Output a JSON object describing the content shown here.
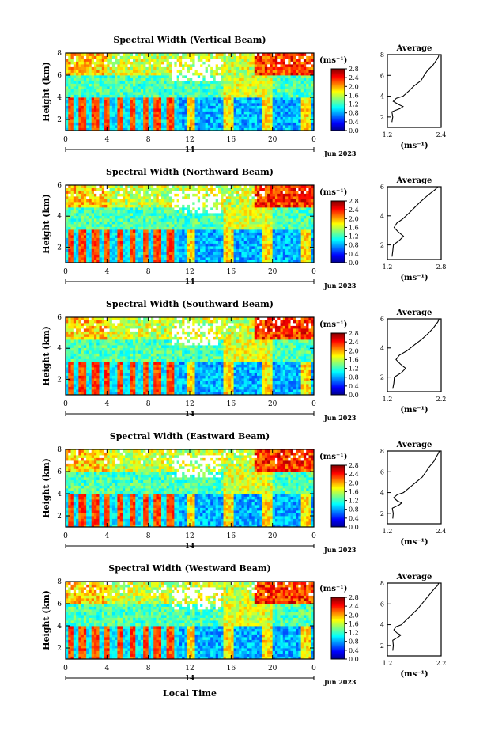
{
  "figure": {
    "xlabel": "Local Time",
    "date_day": "14",
    "date_label": "Jun 2023"
  },
  "chart_data": [
    {
      "type": "heatmap",
      "title": "Spectral Width (Vertical Beam)",
      "ylabel": "Height (km)",
      "xlim": [
        0,
        24
      ],
      "ylim": [
        1,
        8
      ],
      "xticks": [
        "0",
        "4",
        "8",
        "12",
        "16",
        "20",
        "0"
      ],
      "yticks": [
        "2",
        "4",
        "6",
        "8"
      ],
      "colorbar": {
        "unit": "(ms⁻¹)",
        "min": 0.0,
        "max": 2.8,
        "ticks": [
          "0.0",
          "0.4",
          "0.8",
          "1.2",
          "1.6",
          "2.0",
          "2.4",
          "2.8"
        ]
      },
      "profile": {
        "title": "Average",
        "xlabel": "(ms⁻¹)",
        "xlim": [
          1.2,
          2.4
        ],
        "xticks": [
          "1.2",
          "2.4"
        ],
        "yticks": [
          "2",
          "4",
          "6",
          "8"
        ],
        "height": [
          1.5,
          2.0,
          2.5,
          2.8,
          3.0,
          3.2,
          3.5,
          3.8,
          4.0,
          4.5,
          5.0,
          5.5,
          6.0,
          6.5,
          7.0,
          7.5,
          7.8,
          8.0
        ],
        "width": [
          1.3,
          1.32,
          1.3,
          1.48,
          1.55,
          1.45,
          1.33,
          1.4,
          1.55,
          1.68,
          1.8,
          1.95,
          2.02,
          2.1,
          2.22,
          2.3,
          2.34,
          2.35
        ]
      },
      "heat_seed": 3
    },
    {
      "type": "heatmap",
      "title": "Spectral Width (Northward Beam)",
      "ylabel": "Height (km)",
      "xlim": [
        0,
        24
      ],
      "ylim": [
        1,
        6
      ],
      "xticks": [
        "0",
        "4",
        "8",
        "12",
        "16",
        "20",
        "0"
      ],
      "yticks": [
        "2",
        "4",
        "6"
      ],
      "colorbar": {
        "unit": "(ms⁻¹)",
        "min": 0.0,
        "max": 2.8,
        "ticks": [
          "0.0",
          "0.4",
          "0.8",
          "1.2",
          "1.6",
          "2.0",
          "2.4",
          "2.8"
        ]
      },
      "profile": {
        "title": "Average",
        "xlabel": "(ms⁻¹)",
        "xlim": [
          1.2,
          2.8
        ],
        "xticks": [
          "1.2",
          "2.8"
        ],
        "yticks": [
          "2",
          "4",
          "6"
        ],
        "height": [
          1.2,
          1.6,
          2.0,
          2.3,
          2.6,
          2.9,
          3.2,
          3.5,
          3.8,
          4.2,
          4.6,
          5.0,
          5.4,
          5.8,
          6.0
        ],
        "width": [
          1.34,
          1.36,
          1.38,
          1.55,
          1.68,
          1.52,
          1.4,
          1.48,
          1.66,
          1.85,
          2.02,
          2.2,
          2.4,
          2.62,
          2.7
        ]
      },
      "heat_seed": 7
    },
    {
      "type": "heatmap",
      "title": "Spectral Width (Southward Beam)",
      "ylabel": "Height (km)",
      "xlim": [
        0,
        24
      ],
      "ylim": [
        1,
        6
      ],
      "xticks": [
        "0",
        "4",
        "8",
        "12",
        "16",
        "20",
        "0"
      ],
      "yticks": [
        "2",
        "4",
        "6"
      ],
      "colorbar": {
        "unit": "(ms⁻¹)",
        "min": 0.0,
        "max": 2.8,
        "ticks": [
          "0.0",
          "0.4",
          "0.8",
          "1.2",
          "1.6",
          "2.0",
          "2.4",
          "2.8"
        ]
      },
      "profile": {
        "title": "Average",
        "xlabel": "(ms⁻¹)",
        "xlim": [
          1.2,
          2.2
        ],
        "xticks": [
          "1.2",
          "2.2"
        ],
        "yticks": [
          "2",
          "4",
          "6"
        ],
        "height": [
          1.2,
          1.6,
          2.0,
          2.3,
          2.6,
          2.9,
          3.2,
          3.5,
          3.8,
          4.2,
          4.6,
          5.0,
          5.4,
          5.8,
          6.0
        ],
        "width": [
          1.3,
          1.32,
          1.33,
          1.46,
          1.54,
          1.44,
          1.36,
          1.42,
          1.56,
          1.7,
          1.84,
          1.96,
          2.06,
          2.14,
          2.16
        ]
      },
      "heat_seed": 11
    },
    {
      "type": "heatmap",
      "title": "Spectral Width (Eastward Beam)",
      "ylabel": "Height (km)",
      "xlim": [
        0,
        24
      ],
      "ylim": [
        1,
        8
      ],
      "xticks": [
        "0",
        "4",
        "8",
        "12",
        "16",
        "20",
        "0"
      ],
      "yticks": [
        "2",
        "4",
        "6",
        "8"
      ],
      "colorbar": {
        "unit": "(ms⁻¹)",
        "min": 0.0,
        "max": 2.8,
        "ticks": [
          "0.0",
          "0.4",
          "0.8",
          "1.2",
          "1.6",
          "2.0",
          "2.4",
          "2.8"
        ]
      },
      "profile": {
        "title": "Average",
        "xlabel": "(ms⁻¹)",
        "xlim": [
          1.2,
          2.4
        ],
        "xticks": [
          "1.2",
          "2.4"
        ],
        "yticks": [
          "2",
          "4",
          "6",
          "8"
        ],
        "height": [
          1.5,
          2.0,
          2.5,
          2.8,
          3.0,
          3.2,
          3.5,
          3.8,
          4.0,
          4.5,
          5.0,
          5.5,
          6.0,
          6.5,
          7.0,
          7.5,
          7.8,
          8.0
        ],
        "width": [
          1.32,
          1.33,
          1.31,
          1.46,
          1.52,
          1.42,
          1.34,
          1.42,
          1.56,
          1.7,
          1.84,
          1.98,
          2.06,
          2.14,
          2.24,
          2.3,
          2.34,
          2.36
        ]
      },
      "heat_seed": 17
    },
    {
      "type": "heatmap",
      "title": "Spectral Width (Westward Beam)",
      "ylabel": "Height (km)",
      "xlim": [
        0,
        24
      ],
      "ylim": [
        1,
        8
      ],
      "xticks": [
        "0",
        "4",
        "8",
        "12",
        "16",
        "20",
        "0"
      ],
      "yticks": [
        "2",
        "4",
        "6",
        "8"
      ],
      "colorbar": {
        "unit": "(ms⁻¹)",
        "min": 0.0,
        "max": 2.8,
        "ticks": [
          "0.0",
          "0.4",
          "0.8",
          "1.2",
          "1.6",
          "2.0",
          "2.4",
          "2.8"
        ]
      },
      "profile": {
        "title": "Average",
        "xlabel": "(ms⁻¹)",
        "xlim": [
          1.2,
          2.2
        ],
        "xticks": [
          "1.2",
          "2.2"
        ],
        "yticks": [
          "2",
          "4",
          "6",
          "8"
        ],
        "height": [
          1.5,
          2.0,
          2.5,
          2.8,
          3.0,
          3.2,
          3.5,
          3.8,
          4.0,
          4.5,
          5.0,
          5.5,
          6.0,
          6.5,
          7.0,
          7.5,
          7.8,
          8.0
        ],
        "width": [
          1.3,
          1.31,
          1.3,
          1.4,
          1.45,
          1.38,
          1.32,
          1.36,
          1.46,
          1.56,
          1.66,
          1.76,
          1.84,
          1.92,
          2.0,
          2.08,
          2.14,
          2.15
        ]
      },
      "heat_seed": 23
    }
  ]
}
